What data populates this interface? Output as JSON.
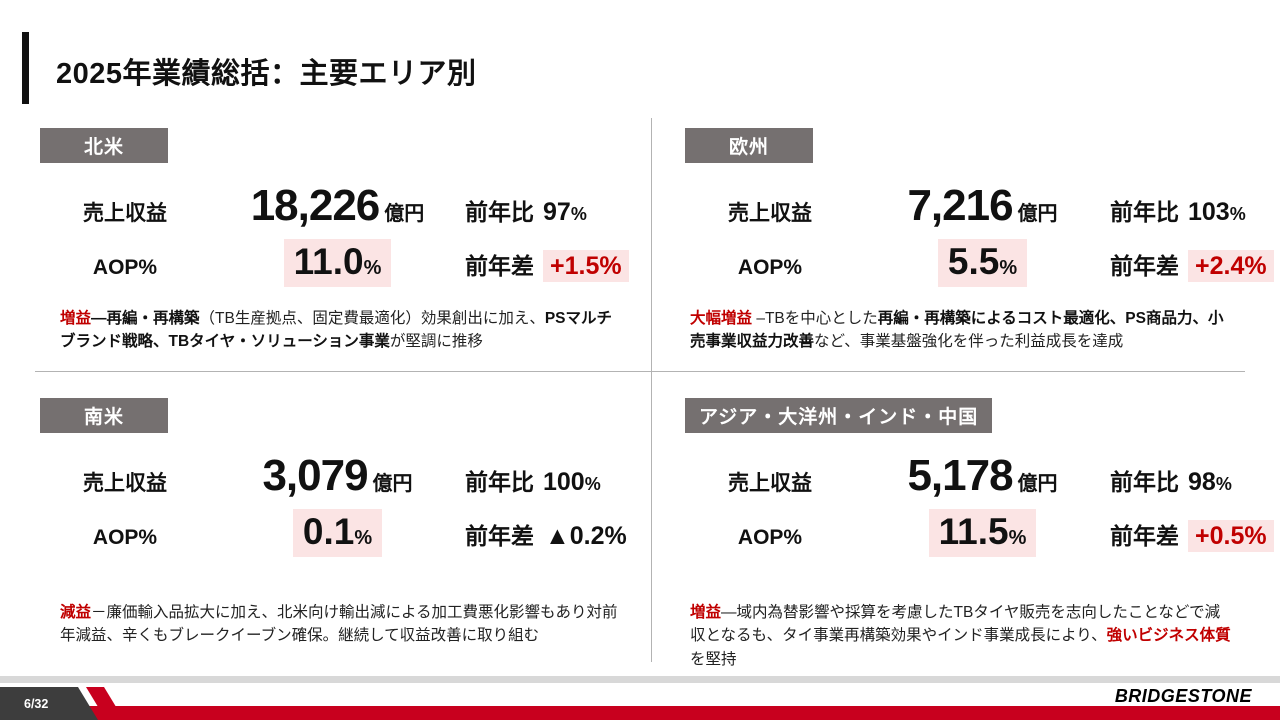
{
  "slide": {
    "title": "2025年業績総括：主要エリア別",
    "page_number": "6/32",
    "brand": "BRIDGESTONE"
  },
  "labels": {
    "revenue": "売上収益",
    "aop": "AOP%",
    "yoy_ratio": "前年比",
    "yoy_diff": "前年差",
    "unit": "億円",
    "percent": "%"
  },
  "colors": {
    "accent_red": "#c00000",
    "highlight_pink": "#fbe4e4",
    "tag_gray": "#757070",
    "footer_red": "#c8001e"
  },
  "regions": [
    {
      "name": "北米",
      "revenue": "18,226",
      "yoy": "97",
      "aop": "11.0",
      "diff": "+1.5%",
      "diff_variant": "pos",
      "note_segments": [
        {
          "t": "増益",
          "s": "red"
        },
        {
          "t": "―再編・再構築",
          "s": "b"
        },
        {
          "t": "（TB生産拠点、固定費最適化）効果創出に加え、",
          "s": "n"
        },
        {
          "t": "PSマルチブランド戦略、TBタイヤ・ソリューション事業",
          "s": "b"
        },
        {
          "t": "が堅調に推移",
          "s": "n"
        }
      ]
    },
    {
      "name": "欧州",
      "revenue": "7,216",
      "yoy": "103",
      "aop": "5.5",
      "diff": "+2.4%",
      "diff_variant": "pos",
      "note_segments": [
        {
          "t": "大幅増益",
          "s": "red"
        },
        {
          "t": " –TBを中心とした",
          "s": "n"
        },
        {
          "t": "再編・再構築によるコスト最適化、PS商品力、小売事業収益力改善",
          "s": "b"
        },
        {
          "t": "など、事業基盤強化を伴った利益成長を達成",
          "s": "n"
        }
      ]
    },
    {
      "name": "南米",
      "revenue": "3,079",
      "yoy": "100",
      "aop": "0.1",
      "diff": "▲0.2%",
      "diff_variant": "plain",
      "note_segments": [
        {
          "t": "減益",
          "s": "red"
        },
        {
          "t": "－廉価輸入品拡大に加え、北米向け輸出減による加工費悪化影響もあり対前年減益、辛くもブレークイーブン確保。継続して収益改善に取り組む",
          "s": "n"
        }
      ]
    },
    {
      "name": "アジア・大洋州・インド・中国",
      "revenue": "5,178",
      "yoy": "98",
      "aop": "11.5",
      "diff": "+0.5%",
      "diff_variant": "pos",
      "note_segments": [
        {
          "t": "増益",
          "s": "red"
        },
        {
          "t": "―域内為替影響や採算を考慮したTBタイヤ販売を志向したことなどで減収となるも、タイ事業再構築効果やインド事業成長により、",
          "s": "n"
        },
        {
          "t": "強いビジネス体質",
          "s": "red"
        },
        {
          "t": "を堅持",
          "s": "n"
        }
      ]
    }
  ]
}
